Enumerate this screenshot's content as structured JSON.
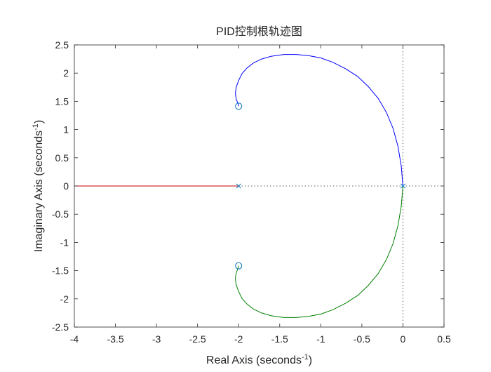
{
  "chart_data": {
    "type": "line",
    "title": "PID控制根轨迹图",
    "xlabel": "Real Axis (seconds",
    "ylabel": "Imaginary Axis (seconds",
    "label_exponent": "-1",
    "label_close": ")",
    "xlim": [
      -4,
      0.5
    ],
    "ylim": [
      -2.5,
      2.5
    ],
    "xticks": [
      -4,
      -3.5,
      -3,
      -2.5,
      -2,
      -1.5,
      -1,
      -0.5,
      0,
      0.5
    ],
    "xtick_labels": [
      "-4",
      "-3.5",
      "-3",
      "-2.5",
      "-2",
      "-1.5",
      "-1",
      "-0.5",
      "0",
      "0.5"
    ],
    "yticks": [
      -2.5,
      -2,
      -1.5,
      -1,
      -0.5,
      0,
      0.5,
      1,
      1.5,
      2,
      2.5
    ],
    "ytick_labels": [
      "-2.5",
      "-2",
      "-1.5",
      "-1",
      "-0.5",
      "0",
      "0.5",
      "1",
      "1.5",
      "2",
      "2.5"
    ],
    "grid": false,
    "series": [
      {
        "color": "#0000ff",
        "x": [
          0,
          -0.02,
          -0.06,
          -0.12,
          -0.2,
          -0.3,
          -0.42,
          -0.55,
          -0.7,
          -0.85,
          -1.0,
          -1.15,
          -1.3,
          -1.45,
          -1.6,
          -1.72,
          -1.82,
          -1.9,
          -1.96,
          -2.0,
          -2.03,
          -2.04,
          -2.03,
          -2.01,
          -2.0
        ],
        "y": [
          0,
          0.35,
          0.7,
          1.02,
          1.3,
          1.55,
          1.76,
          1.94,
          2.08,
          2.19,
          2.27,
          2.31,
          2.33,
          2.33,
          2.3,
          2.25,
          2.18,
          2.09,
          1.99,
          1.87,
          1.75,
          1.64,
          1.54,
          1.47,
          1.414
        ]
      },
      {
        "color": "#008000",
        "x": [
          0,
          -0.02,
          -0.06,
          -0.12,
          -0.2,
          -0.3,
          -0.42,
          -0.55,
          -0.7,
          -0.85,
          -1.0,
          -1.15,
          -1.3,
          -1.45,
          -1.6,
          -1.72,
          -1.82,
          -1.9,
          -1.96,
          -2.0,
          -2.03,
          -2.04,
          -2.03,
          -2.01,
          -2.0
        ],
        "y": [
          0,
          -0.35,
          -0.7,
          -1.02,
          -1.3,
          -1.55,
          -1.76,
          -1.94,
          -2.08,
          -2.19,
          -2.27,
          -2.31,
          -2.33,
          -2.33,
          -2.3,
          -2.25,
          -2.18,
          -2.09,
          -1.99,
          -1.87,
          -1.75,
          -1.64,
          -1.54,
          -1.47,
          -1.414
        ]
      },
      {
        "color": "#cc0000",
        "x": [
          -2,
          -4
        ],
        "y": [
          0,
          0
        ]
      }
    ],
    "poles": [
      {
        "x": 0,
        "y": 0
      },
      {
        "x": -2,
        "y": 0
      }
    ],
    "zeros": [
      {
        "x": -2,
        "y": 1.414
      },
      {
        "x": -2,
        "y": -1.414
      }
    ],
    "marker_color": "#0072bd",
    "reference_axes": {
      "x": 0,
      "y": 0,
      "style": "dotted"
    }
  }
}
